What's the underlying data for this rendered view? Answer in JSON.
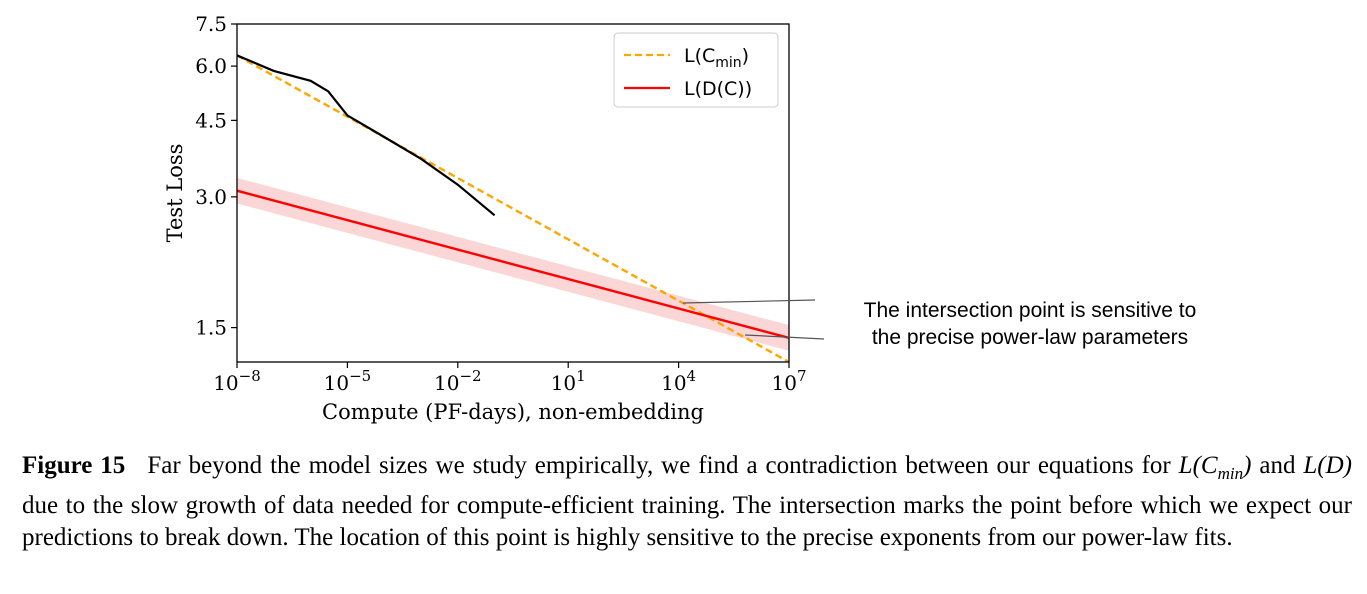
{
  "chart_data": {
    "type": "line",
    "scale": "log-log",
    "xlabel": "Compute (PF-days), non-embedding",
    "ylabel": "Test Loss",
    "x_ticks": [
      {
        "base": "10",
        "exp": "−8",
        "value": 1e-08
      },
      {
        "base": "10",
        "exp": "−5",
        "value": 1e-05
      },
      {
        "base": "10",
        "exp": "−2",
        "value": 0.01
      },
      {
        "base": "10",
        "exp": "1",
        "value": 10
      },
      {
        "base": "10",
        "exp": "4",
        "value": 10000
      },
      {
        "base": "10",
        "exp": "7",
        "value": 10000000
      }
    ],
    "y_ticks": [
      {
        "label": "1.5",
        "value": 1.5
      },
      {
        "label": "3.0",
        "value": 3.0
      },
      {
        "label": "4.5",
        "value": 4.5
      },
      {
        "label": "6.0",
        "value": 6.0
      },
      {
        "label": "7.5",
        "value": 7.5
      }
    ],
    "xlim": [
      1e-08,
      10000000
    ],
    "ylim": [
      1.25,
      7.5
    ],
    "legend_position": "top-right",
    "series": [
      {
        "name": "L(C_min)",
        "legend_main": "L(C",
        "legend_sub": "min",
        "legend_close": ")",
        "style": "dashed",
        "color": "#FFA500",
        "x": [
          1e-08,
          10000000
        ],
        "y": [
          6.35,
          1.25
        ]
      },
      {
        "name": "L(D(C))",
        "legend_main": "L(D(C))",
        "legend_sub": "",
        "legend_close": "",
        "style": "solid",
        "color": "#FF0000",
        "x": [
          1e-08,
          10000000
        ],
        "y": [
          3.1,
          1.42
        ]
      },
      {
        "name": "empirical",
        "style": "solid",
        "color": "#000000",
        "x": [
          1e-08,
          1e-07,
          1e-06,
          3e-06,
          1e-05,
          0.0001,
          0.001,
          0.01,
          0.1
        ],
        "y": [
          6.35,
          5.85,
          5.55,
          5.25,
          4.62,
          4.12,
          3.67,
          3.2,
          2.72
        ]
      }
    ],
    "band": {
      "series": "L(D(C))",
      "color": "#F8C8C8",
      "factor": 1.07
    },
    "annotation": {
      "lines": [
        "The intersection point is sensitive to",
        "the precise power-law parameters"
      ],
      "target": {
        "x": 10000,
        "y": 1.62
      }
    }
  },
  "caption": {
    "label": "Figure 15",
    "part1": "Far beyond the model sizes we study empirically, we find a contradiction between our equations for ",
    "eq1_main": "L",
    "eq1_open": "(C",
    "eq1_sub": "min",
    "eq1_close": ")",
    "mid": " and ",
    "eq2": "L(D)",
    "part2": " due to the slow growth of data needed for compute-efficient training. The intersection marks the point before which we expect our predictions to break down. The location of this point is highly sensitive to the precise exponents from our power-law fits."
  }
}
